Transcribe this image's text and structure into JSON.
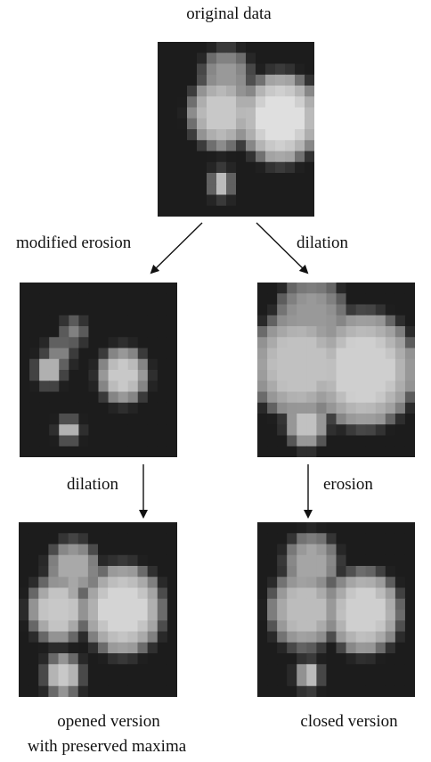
{
  "labels": {
    "top_title": "original data",
    "left_arrow": "modified erosion",
    "right_arrow": "dilation",
    "mid_left_arrow": "dilation",
    "mid_right_arrow": "erosion",
    "bottom_left_line1": "opened version",
    "bottom_left_line2": "with preserved maxima",
    "bottom_right": "closed version"
  },
  "colors": {
    "background": "#232323",
    "text": "#111111"
  },
  "panels": [
    {
      "id": "original",
      "blobs": [
        {
          "cx": 6.5,
          "cy": 6.5,
          "r": 3.0,
          "peak": 0.85
        },
        {
          "cx": 7.0,
          "cy": 3.2,
          "r": 2.3,
          "peak": 0.65
        },
        {
          "cx": 12.5,
          "cy": 7.0,
          "r": 3.8,
          "peak": 0.95
        },
        {
          "cx": 6.5,
          "cy": 13.0,
          "r": 0.9,
          "peak": 0.8
        }
      ]
    },
    {
      "id": "modified-erosion",
      "blobs": [
        {
          "cx": 5.5,
          "cy": 4.5,
          "r": 1.0,
          "peak": 0.55
        },
        {
          "cx": 4.0,
          "cy": 6.5,
          "r": 1.2,
          "peak": 0.55
        },
        {
          "cx": 3.0,
          "cy": 8.0,
          "r": 1.1,
          "peak": 0.8
        },
        {
          "cx": 10.5,
          "cy": 8.5,
          "r": 2.2,
          "peak": 0.85
        },
        {
          "cx": 5.0,
          "cy": 13.5,
          "r": 0.7,
          "peak": 0.85
        }
      ]
    },
    {
      "id": "dilation-right",
      "blobs": [
        {
          "cx": 4.2,
          "cy": 7.5,
          "r": 4.6,
          "peak": 0.82
        },
        {
          "cx": 5.5,
          "cy": 3.3,
          "r": 3.4,
          "peak": 0.65
        },
        {
          "cx": 10.8,
          "cy": 8.0,
          "r": 5.0,
          "peak": 0.88
        },
        {
          "cx": 5.0,
          "cy": 13.0,
          "r": 1.8,
          "peak": 0.82
        }
      ]
    },
    {
      "id": "opened",
      "blobs": [
        {
          "cx": 4.0,
          "cy": 8.0,
          "r": 2.7,
          "peak": 0.85
        },
        {
          "cx": 5.5,
          "cy": 4.2,
          "r": 2.3,
          "peak": 0.72
        },
        {
          "cx": 10.5,
          "cy": 8.0,
          "r": 3.8,
          "peak": 0.9
        },
        {
          "cx": 4.5,
          "cy": 14.0,
          "r": 1.6,
          "peak": 0.85
        }
      ]
    },
    {
      "id": "closed",
      "blobs": [
        {
          "cx": 4.8,
          "cy": 8.0,
          "r": 3.3,
          "peak": 0.8
        },
        {
          "cx": 5.5,
          "cy": 3.8,
          "r": 2.5,
          "peak": 0.7
        },
        {
          "cx": 10.8,
          "cy": 8.2,
          "r": 3.5,
          "peak": 0.88
        },
        {
          "cx": 5.2,
          "cy": 14.0,
          "r": 0.9,
          "peak": 0.85
        }
      ]
    }
  ]
}
